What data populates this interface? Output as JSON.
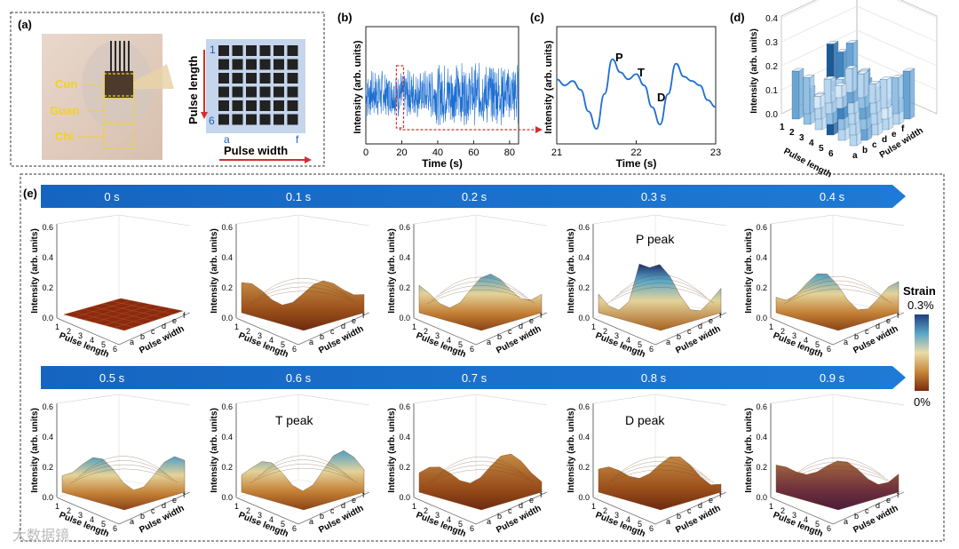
{
  "panels": {
    "a": {
      "label": "(a)",
      "positions": [
        "Cun",
        "Guan",
        "Chi"
      ],
      "grid_axis_v": "Pulse length",
      "grid_axis_h": "Pulse width",
      "grid_tick_top": "1",
      "grid_tick_bottom": "6",
      "grid_tick_left": "a",
      "grid_tick_right": "f",
      "grid_rows": 6,
      "grid_cols": 6
    },
    "b": {
      "label": "(b)"
    },
    "c": {
      "label": "(c)"
    },
    "d": {
      "label": "(d)"
    },
    "e": {
      "label": "(e)",
      "row1_times": [
        "0 s",
        "0.1 s",
        "0.2 s",
        "0.3 s",
        "0.4 s"
      ],
      "row2_times": [
        "0.5 s",
        "0.6 s",
        "0.7 s",
        "0.8 s",
        "0.9 s"
      ],
      "peak_labels": {
        "p": "P peak",
        "t": "T peak",
        "d": "D peak"
      },
      "colorbar": {
        "title": "Strain",
        "max": "0.3%",
        "min": "0%",
        "colors": [
          "#1f4e8c",
          "#5aa6c8",
          "#e8d9a0",
          "#c98a3c",
          "#8a3a12"
        ]
      },
      "surface_axes": {
        "z_label": "Intensity (arb. units)",
        "x_label": "Pulse length",
        "y_label": "Pulse width",
        "z_ticks": [
          "0.0",
          "0.2",
          "0.4",
          "0.6"
        ],
        "x_ticks": [
          "1",
          "2",
          "3",
          "4",
          "5",
          "6"
        ],
        "y_ticks": [
          "a",
          "b",
          "c",
          "d",
          "e",
          "f"
        ]
      }
    }
  },
  "watermark": "大数据镜",
  "chart_data": [
    {
      "panel": "b",
      "type": "line",
      "title": "",
      "xlabel": "Time (s)",
      "ylabel": "Intensity (arb. units)",
      "xlim": [
        0,
        85
      ],
      "x_ticks": [
        "0",
        "20",
        "40",
        "60",
        "80"
      ],
      "note": "dense oscillating pulse signal with highlighted window near t = 18 s",
      "highlight_window": [
        17,
        21
      ],
      "color": "#1f6fd1"
    },
    {
      "panel": "c",
      "type": "line",
      "xlabel": "Time (s)",
      "ylabel": "Intensity (arb. units)",
      "xlim": [
        21,
        23
      ],
      "x_ticks": [
        "21",
        "22",
        "23"
      ],
      "annotations": [
        "P",
        "T",
        "D"
      ],
      "x": [
        21.0,
        21.1,
        21.2,
        21.3,
        21.4,
        21.5,
        21.6,
        21.7,
        21.8,
        21.9,
        22.0,
        22.1,
        22.2,
        22.3,
        22.4,
        22.5,
        22.6,
        22.7,
        22.8,
        22.9,
        23.0
      ],
      "y": [
        0.62,
        0.55,
        0.6,
        0.5,
        0.25,
        0.05,
        0.45,
        0.85,
        0.7,
        0.62,
        0.68,
        0.55,
        0.3,
        0.1,
        0.45,
        0.8,
        0.65,
        0.6,
        0.55,
        0.38,
        0.3
      ],
      "color": "#1f6fd1"
    },
    {
      "panel": "d",
      "type": "bar",
      "note": "3D bar chart of intensity over 6x6 grid",
      "ylabel": "Intensity (arb. units)",
      "z_ticks": [
        "0.0",
        "0.1",
        "0.2",
        "0.3",
        "0.4"
      ],
      "x_label": "Pulse length",
      "y_label": "Pulse width",
      "x_ticks": [
        "1",
        "2",
        "3",
        "4",
        "5",
        "6"
      ],
      "y_ticks": [
        "a",
        "b",
        "c",
        "d",
        "e",
        "f"
      ],
      "values": [
        [
          0.2,
          0.15,
          0.05,
          0.1,
          0.05,
          0.1
        ],
        [
          0.15,
          0.1,
          0.08,
          0.12,
          0.25,
          0.1
        ],
        [
          0.12,
          0.18,
          0.28,
          0.1,
          0.15,
          0.08
        ],
        [
          0.38,
          0.15,
          0.1,
          0.2,
          0.1,
          0.12
        ],
        [
          0.1,
          0.12,
          0.15,
          0.1,
          0.05,
          0.15
        ],
        [
          0.08,
          0.25,
          0.1,
          0.12,
          0.1,
          0.2
        ]
      ]
    }
  ]
}
